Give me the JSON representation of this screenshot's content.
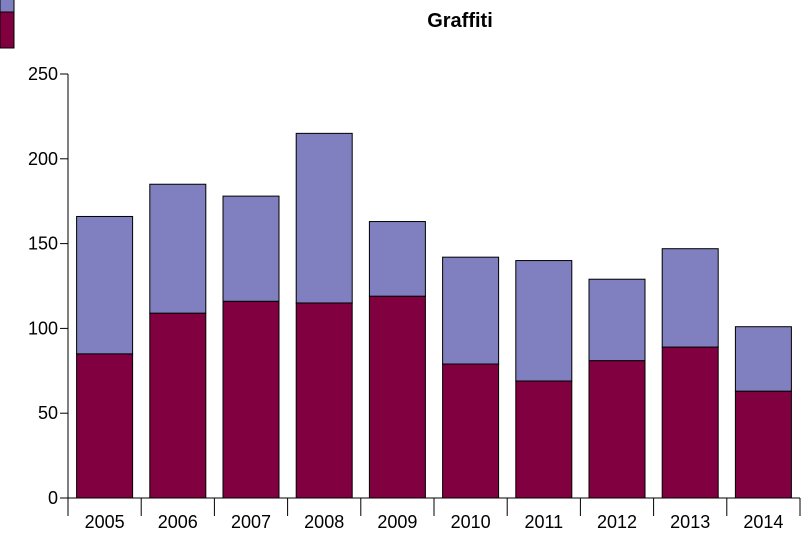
{
  "chart_data": {
    "type": "bar",
    "stacked": true,
    "title": "Graffiti",
    "xlabel": "",
    "ylabel": "",
    "categories": [
      "2005",
      "2006",
      "2007",
      "2008",
      "2009",
      "2010",
      "2011",
      "2012",
      "2013",
      "2014"
    ],
    "series": [
      {
        "color": "#800040",
        "values": [
          85,
          109,
          116,
          115,
          119,
          79,
          69,
          81,
          89,
          63
        ]
      },
      {
        "color": "#8080c0",
        "values": [
          81,
          76,
          62,
          100,
          44,
          63,
          71,
          48,
          58,
          38
        ]
      }
    ],
    "ylim": [
      0,
      250
    ],
    "yticks": [
      "0",
      "50",
      "100",
      "150",
      "200",
      "250"
    ],
    "grid": false,
    "legend_position": "top-left"
  }
}
